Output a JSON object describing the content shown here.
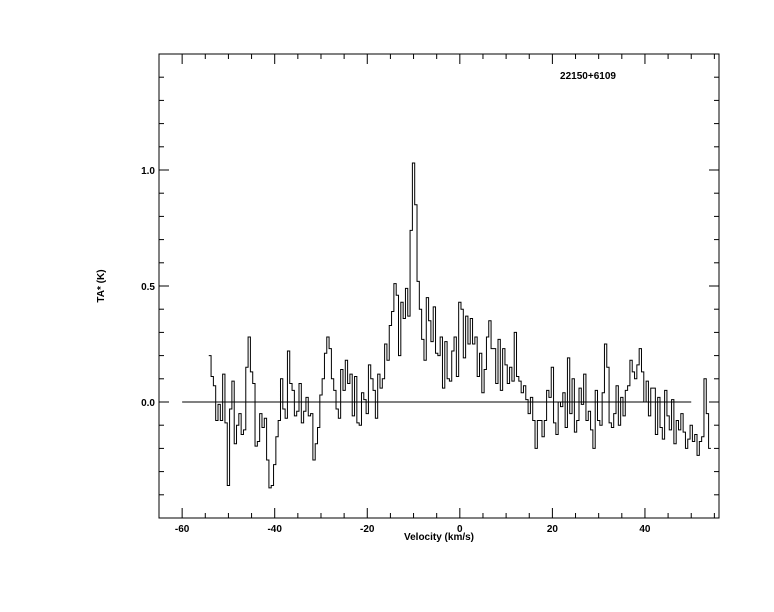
{
  "chart_data": {
    "type": "line",
    "title": "22150+6109",
    "xlabel": "Velocity (km/s)",
    "ylabel": "TA* (K)",
    "xlim": [
      -65,
      56
    ],
    "ylim": [
      -0.5,
      1.5
    ],
    "x_ticks": [
      -60,
      -40,
      -20,
      0,
      20,
      40
    ],
    "x_tick_labels": [
      "-60",
      "-40",
      "-20",
      "0",
      "20",
      "40"
    ],
    "y_ticks": [
      0.0,
      0.5,
      1.0
    ],
    "y_tick_labels": [
      "0.0",
      "0.5",
      "1.0"
    ],
    "baseline": {
      "value": 0.0,
      "x_range": [
        -60,
        50
      ]
    },
    "grid": false,
    "series": [
      {
        "x_start": -54.0,
        "x_step": 0.5,
        "values": [
          0.2,
          0.11,
          0.07,
          -0.08,
          -0.01,
          -0.08,
          0.12,
          -0.09,
          -0.36,
          -0.03,
          0.09,
          -0.18,
          -0.1,
          -0.05,
          -0.14,
          -0.12,
          0.15,
          0.28,
          0.13,
          0.08,
          -0.19,
          -0.17,
          -0.05,
          -0.11,
          -0.07,
          -0.25,
          -0.37,
          -0.36,
          -0.27,
          -0.15,
          -0.08,
          0.1,
          -0.03,
          -0.07,
          0.22,
          0.08,
          0.05,
          -0.06,
          -0.04,
          0.08,
          -0.09,
          -0.04,
          0.02,
          -0.06,
          -0.05,
          -0.25,
          -0.18,
          -0.11,
          0.03,
          0.1,
          0.21,
          0.28,
          0.23,
          0.1,
          0.05,
          -0.03,
          -0.07,
          0.14,
          0.05,
          0.18,
          0.08,
          0.12,
          -0.06,
          0.11,
          -0.09,
          -0.1,
          0.04,
          0.01,
          -0.05,
          0.16,
          0.1,
          0.05,
          -0.07,
          0.12,
          0.06,
          0.1,
          0.25,
          0.18,
          0.33,
          0.39,
          0.51,
          0.46,
          0.2,
          0.43,
          0.36,
          0.49,
          0.37,
          0.74,
          1.03,
          0.85,
          0.52,
          0.4,
          0.27,
          0.18,
          0.45,
          0.35,
          0.26,
          0.41,
          0.21,
          0.2,
          0.28,
          0.06,
          0.26,
          0.1,
          0.09,
          0.22,
          0.28,
          0.11,
          0.43,
          0.4,
          0.19,
          0.37,
          0.25,
          0.36,
          0.25,
          0.28,
          0.11,
          0.21,
          0.04,
          0.14,
          0.28,
          0.35,
          0.23,
          0.23,
          0.08,
          0.27,
          0.05,
          0.23,
          0.16,
          0.08,
          0.15,
          0.09,
          0.3,
          0.11,
          0.09,
          0.04,
          0.07,
          0.01,
          -0.05,
          0.02,
          -0.08,
          -0.2,
          -0.08,
          -0.08,
          -0.15,
          -0.08,
          0.05,
          0.02,
          0.15,
          -0.09,
          -0.14,
          0.0,
          -0.02,
          0.04,
          -0.11,
          0.19,
          -0.05,
          0.1,
          -0.13,
          -0.08,
          0.06,
          -0.01,
          0.12,
          -0.08,
          -0.04,
          -0.12,
          -0.2,
          0.05,
          -0.08,
          -0.1,
          0.04,
          0.25,
          0.15,
          -0.09,
          -0.11,
          -0.05,
          0.07,
          -0.1,
          0.02,
          -0.06,
          0.05,
          0.07,
          0.18,
          0.13,
          0.1,
          0.16,
          0.23,
          0.13,
          0.0,
          0.09,
          -0.06,
          0.06,
          0.06,
          -0.14,
          0.02,
          -0.11,
          -0.16,
          0.05,
          -0.06,
          -0.12,
          0.01,
          -0.18,
          -0.08,
          -0.12,
          -0.05,
          -0.13,
          -0.2,
          -0.16,
          -0.1,
          -0.17,
          -0.14,
          -0.23,
          -0.17,
          -0.15,
          0.1,
          -0.05,
          -0.2
        ]
      }
    ]
  }
}
